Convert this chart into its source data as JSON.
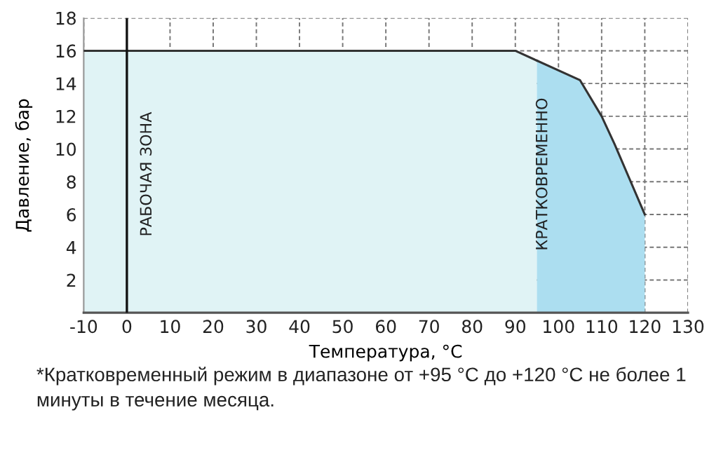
{
  "chart_data": {
    "type": "area",
    "xlabel": "Температура, °C",
    "ylabel": "Давление, бар",
    "series": [
      {
        "x": [
          -10,
          90,
          95
        ],
        "values": [
          16,
          16,
          15.4
        ],
        "color": "#e0f3f5"
      },
      {
        "x": [
          95,
          105,
          110,
          113,
          120
        ],
        "values": [
          15.4,
          14.2,
          12,
          10.3,
          6
        ],
        "color": "#acdef0"
      }
    ],
    "xlim": [
      -10,
      130
    ],
    "ylim": [
      0,
      18
    ],
    "xticks": [
      -10,
      0,
      10,
      20,
      30,
      40,
      50,
      60,
      70,
      80,
      90,
      100,
      110,
      120,
      130
    ],
    "yticks": [
      2,
      4,
      6,
      8,
      10,
      12,
      14,
      16,
      18
    ],
    "grid": true,
    "ref_lines": [
      {
        "axis": "x",
        "value": 0,
        "color": "#111111"
      }
    ],
    "annotations": [
      "РАБОЧАЯ ЗОНА",
      "КРАТКОВРЕМЕННО",
      "*Кратковременный режим в диапазоне от +95 °C до +120 °C не более 1 минуты в течение месяца."
    ]
  }
}
